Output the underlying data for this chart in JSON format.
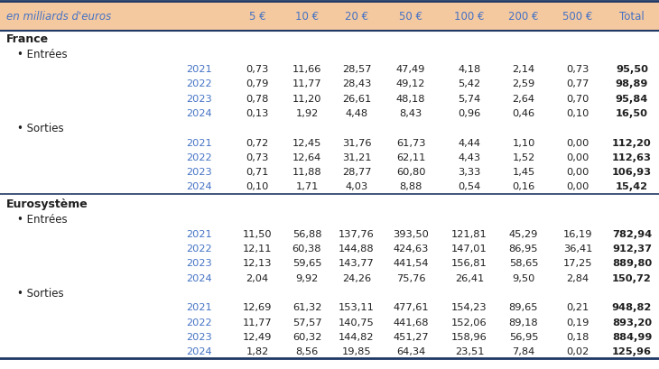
{
  "header_bg": "#F5C9A0",
  "header_text_color": "#4472C4",
  "header_cols": [
    "en milliards d'euros",
    "5 €",
    "10 €",
    "20 €",
    "50 €",
    "100 €",
    "200 €",
    "500 €",
    "Total"
  ],
  "year_color": "#4472C4",
  "total_color": "#1F1F1F",
  "data_color": "#1F1F1F",
  "line_color": "#1F3864",
  "rows": [
    {
      "type": "section",
      "label": "France"
    },
    {
      "type": "subsection",
      "label": "• Entrées"
    },
    {
      "type": "data",
      "year": "2021",
      "vals": [
        "0,73",
        "11,66",
        "28,57",
        "47,49",
        "4,18",
        "2,14",
        "0,73"
      ],
      "total": "95,50"
    },
    {
      "type": "data",
      "year": "2022",
      "vals": [
        "0,79",
        "11,77",
        "28,43",
        "49,12",
        "5,42",
        "2,59",
        "0,77"
      ],
      "total": "98,89"
    },
    {
      "type": "data",
      "year": "2023",
      "vals": [
        "0,78",
        "11,20",
        "26,61",
        "48,18",
        "5,74",
        "2,64",
        "0,70"
      ],
      "total": "95,84"
    },
    {
      "type": "data",
      "year": "2024",
      "vals": [
        "0,13",
        "1,92",
        "4,48",
        "8,43",
        "0,96",
        "0,46",
        "0,10"
      ],
      "total": "16,50"
    },
    {
      "type": "subsection",
      "label": "• Sorties"
    },
    {
      "type": "data",
      "year": "2021",
      "vals": [
        "0,72",
        "12,45",
        "31,76",
        "61,73",
        "4,44",
        "1,10",
        "0,00"
      ],
      "total": "112,20"
    },
    {
      "type": "data",
      "year": "2022",
      "vals": [
        "0,73",
        "12,64",
        "31,21",
        "62,11",
        "4,43",
        "1,52",
        "0,00"
      ],
      "total": "112,63"
    },
    {
      "type": "data",
      "year": "2023",
      "vals": [
        "0,71",
        "11,88",
        "28,77",
        "60,80",
        "3,33",
        "1,45",
        "0,00"
      ],
      "total": "106,93"
    },
    {
      "type": "data",
      "year": "2024",
      "vals": [
        "0,10",
        "1,71",
        "4,03",
        "8,88",
        "0,54",
        "0,16",
        "0,00"
      ],
      "total": "15,42"
    },
    {
      "type": "section_break"
    },
    {
      "type": "section",
      "label": "Eurosystème"
    },
    {
      "type": "subsection",
      "label": "• Entrées"
    },
    {
      "type": "data",
      "year": "2021",
      "vals": [
        "11,50",
        "56,88",
        "137,76",
        "393,50",
        "121,81",
        "45,29",
        "16,19"
      ],
      "total": "782,94"
    },
    {
      "type": "data",
      "year": "2022",
      "vals": [
        "12,11",
        "60,38",
        "144,88",
        "424,63",
        "147,01",
        "86,95",
        "36,41"
      ],
      "total": "912,37"
    },
    {
      "type": "data",
      "year": "2023",
      "vals": [
        "12,13",
        "59,65",
        "143,77",
        "441,54",
        "156,81",
        "58,65",
        "17,25"
      ],
      "total": "889,80"
    },
    {
      "type": "data",
      "year": "2024",
      "vals": [
        "2,04",
        "9,92",
        "24,26",
        "75,76",
        "26,41",
        "9,50",
        "2,84"
      ],
      "total": "150,72"
    },
    {
      "type": "subsection",
      "label": "• Sorties"
    },
    {
      "type": "data",
      "year": "2021",
      "vals": [
        "12,69",
        "61,32",
        "153,11",
        "477,61",
        "154,23",
        "89,65",
        "0,21"
      ],
      "total": "948,82"
    },
    {
      "type": "data",
      "year": "2022",
      "vals": [
        "11,77",
        "57,57",
        "140,75",
        "441,68",
        "152,06",
        "89,18",
        "0,19"
      ],
      "total": "893,20"
    },
    {
      "type": "data",
      "year": "2023",
      "vals": [
        "12,49",
        "60,32",
        "144,82",
        "451,27",
        "158,96",
        "56,95",
        "0,18"
      ],
      "total": "884,99"
    },
    {
      "type": "data",
      "year": "2024",
      "vals": [
        "1,82",
        "8,56",
        "19,85",
        "64,34",
        "23,51",
        "7,84",
        "0,02"
      ],
      "total": "125,96"
    }
  ],
  "figsize": [
    7.3,
    4.1
  ],
  "dpi": 100
}
